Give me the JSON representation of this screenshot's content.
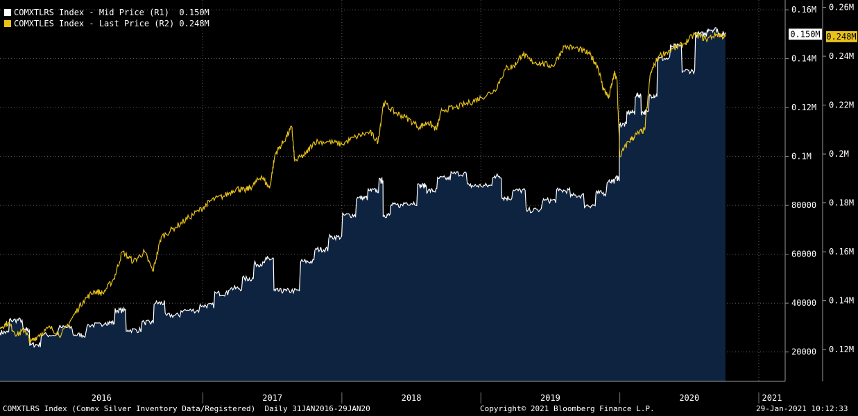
{
  "legend": [
    {
      "swatch_color": "#ffffff",
      "label": "COMXTLRS Index - Mid Price (R1)",
      "value": "0.150M"
    },
    {
      "swatch_color": "#e8c21a",
      "label": "COMXTLES Index - Last Price (R2)",
      "value": "0.248M"
    }
  ],
  "footer": {
    "left": "COMXTLRS Index (Comex Silver Inventory Data/Registered)  Daily 31JAN2016-29JAN20",
    "center": "Copyright© 2021 Bloomberg Finance L.P.",
    "right": "29-Jan-2021 10:12:33"
  },
  "chart_data": {
    "type": "area",
    "colors": {
      "background": "#000000",
      "area_fill": "#0e2340",
      "mid_line": "#ffffff",
      "last_line": "#e8c21a",
      "grid": "#7a7a7a"
    },
    "x_axis": {
      "labels": [
        {
          "label": "2016",
          "t": 2016.0
        },
        {
          "label": "2017",
          "t": 2017.0
        },
        {
          "label": "2018",
          "t": 2018.0
        },
        {
          "label": "2019",
          "t": 2019.0
        },
        {
          "label": "2020",
          "t": 2020.0
        },
        {
          "label": "2021",
          "t": 2021.0
        }
      ],
      "range": [
        2015.54,
        2021.08
      ]
    },
    "r1_axis": {
      "ticks": [
        {
          "value": 20000,
          "label": "20000"
        },
        {
          "value": 40000,
          "label": "40000"
        },
        {
          "value": 60000,
          "label": "60000"
        },
        {
          "value": 80000,
          "label": "80000"
        },
        {
          "value": 100000,
          "label": "0.1M"
        },
        {
          "value": 120000,
          "label": "0.12M"
        },
        {
          "value": 140000,
          "label": "0.14M"
        },
        {
          "value": 160000,
          "label": "0.16M"
        }
      ],
      "range": [
        8000,
        164000
      ]
    },
    "r2_axis": {
      "ticks": [
        {
          "value": 120000,
          "label": "0.12M"
        },
        {
          "value": 140000,
          "label": "0.14M"
        },
        {
          "value": 160000,
          "label": "0.16M"
        },
        {
          "value": 180000,
          "label": "0.18M"
        },
        {
          "value": 200000,
          "label": "0.2M"
        },
        {
          "value": 220000,
          "label": "0.22M"
        },
        {
          "value": 240000,
          "label": "0.24M"
        },
        {
          "value": 260000,
          "label": "0.26M"
        }
      ],
      "range": [
        107000,
        263000
      ]
    },
    "series": [
      {
        "name": "COMXTLRS Index - Mid Price (R1)",
        "axis": "R1",
        "last_value_label": "0.150M",
        "points": [
          [
            2015.54,
            28000
          ],
          [
            2015.62,
            33000
          ],
          [
            2015.72,
            29000
          ],
          [
            2015.76,
            23000
          ],
          [
            2015.85,
            27000
          ],
          [
            2015.98,
            30000
          ],
          [
            2016.08,
            27000
          ],
          [
            2016.18,
            31000
          ],
          [
            2016.3,
            32000
          ],
          [
            2016.38,
            37000
          ],
          [
            2016.46,
            29000
          ],
          [
            2016.58,
            32000
          ],
          [
            2016.66,
            40000
          ],
          [
            2016.74,
            35000
          ],
          [
            2016.86,
            37000
          ],
          [
            2017.0,
            39000
          ],
          [
            2017.1,
            44000
          ],
          [
            2017.2,
            46000
          ],
          [
            2017.3,
            50000
          ],
          [
            2017.38,
            56000
          ],
          [
            2017.46,
            58000
          ],
          [
            2017.52,
            45000
          ],
          [
            2017.6,
            45000
          ],
          [
            2017.72,
            57000
          ],
          [
            2017.82,
            62000
          ],
          [
            2017.92,
            67000
          ],
          [
            2018.02,
            76000
          ],
          [
            2018.12,
            83000
          ],
          [
            2018.2,
            86000
          ],
          [
            2018.28,
            90000
          ],
          [
            2018.3,
            76000
          ],
          [
            2018.36,
            80000
          ],
          [
            2018.46,
            81000
          ],
          [
            2018.56,
            88000
          ],
          [
            2018.62,
            86000
          ],
          [
            2018.7,
            91000
          ],
          [
            2018.8,
            93000
          ],
          [
            2018.92,
            88000
          ],
          [
            2019.0,
            88000
          ],
          [
            2019.1,
            92000
          ],
          [
            2019.16,
            83000
          ],
          [
            2019.24,
            86000
          ],
          [
            2019.34,
            78000
          ],
          [
            2019.46,
            82000
          ],
          [
            2019.56,
            86000
          ],
          [
            2019.66,
            84000
          ],
          [
            2019.76,
            80000
          ],
          [
            2019.84,
            85000
          ],
          [
            2019.92,
            90000
          ],
          [
            2019.98,
            91000
          ],
          [
            2020.0,
            113000
          ],
          [
            2020.06,
            118000
          ],
          [
            2020.12,
            125000
          ],
          [
            2020.16,
            118000
          ],
          [
            2020.22,
            125000
          ],
          [
            2020.28,
            140000
          ],
          [
            2020.38,
            145000
          ],
          [
            2020.46,
            135000
          ],
          [
            2020.56,
            150000
          ],
          [
            2020.64,
            152000
          ],
          [
            2020.72,
            150000
          ],
          [
            2020.76,
            150000
          ]
        ]
      },
      {
        "name": "COMXTLES Index - Last Price (R2)",
        "axis": "R2",
        "last_value_label": "0.248M",
        "points": [
          [
            2015.54,
            129000
          ],
          [
            2015.6,
            131000
          ],
          [
            2015.66,
            126000
          ],
          [
            2015.72,
            128000
          ],
          [
            2015.76,
            123000
          ],
          [
            2015.82,
            126000
          ],
          [
            2015.9,
            129000
          ],
          [
            2015.98,
            126000
          ],
          [
            2016.06,
            133000
          ],
          [
            2016.14,
            140000
          ],
          [
            2016.22,
            144000
          ],
          [
            2016.28,
            143000
          ],
          [
            2016.36,
            149000
          ],
          [
            2016.42,
            160000
          ],
          [
            2016.5,
            156000
          ],
          [
            2016.58,
            160000
          ],
          [
            2016.64,
            152000
          ],
          [
            2016.7,
            166000
          ],
          [
            2016.8,
            170000
          ],
          [
            2016.9,
            174000
          ],
          [
            2017.0,
            178000
          ],
          [
            2017.06,
            181000
          ],
          [
            2017.16,
            183000
          ],
          [
            2017.24,
            186000
          ],
          [
            2017.3,
            185000
          ],
          [
            2017.36,
            187000
          ],
          [
            2017.42,
            191000
          ],
          [
            2017.48,
            186000
          ],
          [
            2017.52,
            200000
          ],
          [
            2017.58,
            205000
          ],
          [
            2017.64,
            211000
          ],
          [
            2017.66,
            197000
          ],
          [
            2017.74,
            200000
          ],
          [
            2017.8,
            205000
          ],
          [
            2017.9,
            205000
          ],
          [
            2018.0,
            204000
          ],
          [
            2018.1,
            207000
          ],
          [
            2018.2,
            209000
          ],
          [
            2018.26,
            205000
          ],
          [
            2018.3,
            221000
          ],
          [
            2018.38,
            217000
          ],
          [
            2018.46,
            215000
          ],
          [
            2018.56,
            211000
          ],
          [
            2018.62,
            213000
          ],
          [
            2018.68,
            210000
          ],
          [
            2018.72,
            218000
          ],
          [
            2018.82,
            219000
          ],
          [
            2018.92,
            221000
          ],
          [
            2019.0,
            223000
          ],
          [
            2019.1,
            226000
          ],
          [
            2019.18,
            235000
          ],
          [
            2019.24,
            236000
          ],
          [
            2019.3,
            241000
          ],
          [
            2019.36,
            238000
          ],
          [
            2019.44,
            237000
          ],
          [
            2019.52,
            236000
          ],
          [
            2019.6,
            244000
          ],
          [
            2019.7,
            243000
          ],
          [
            2019.78,
            241000
          ],
          [
            2019.84,
            236000
          ],
          [
            2019.88,
            227000
          ],
          [
            2019.92,
            223000
          ],
          [
            2019.96,
            233000
          ],
          [
            2019.98,
            230000
          ],
          [
            2020.0,
            199000
          ],
          [
            2020.06,
            205000
          ],
          [
            2020.12,
            208000
          ],
          [
            2020.18,
            210000
          ],
          [
            2020.22,
            233000
          ],
          [
            2020.28,
            240000
          ],
          [
            2020.38,
            243000
          ],
          [
            2020.46,
            245000
          ],
          [
            2020.54,
            249000
          ],
          [
            2020.62,
            247000
          ],
          [
            2020.7,
            249000
          ],
          [
            2020.76,
            248000
          ]
        ]
      }
    ]
  }
}
